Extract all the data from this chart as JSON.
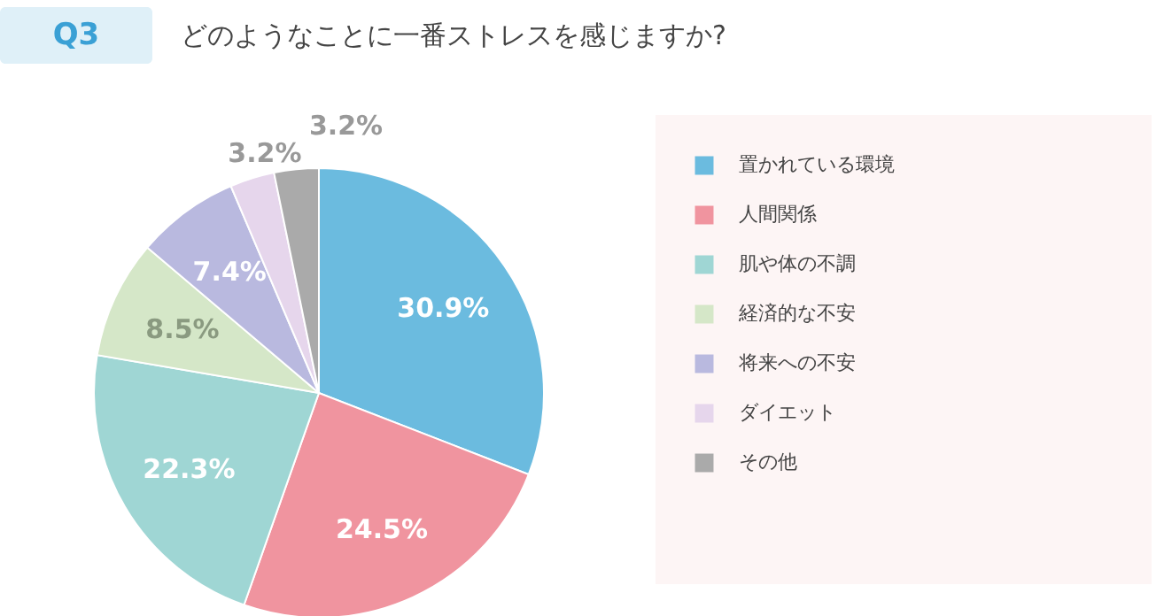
{
  "chart_data": {
    "type": "pie",
    "title": "Q3",
    "subtitle": "どのようなことに一番ストレスを感じますか?",
    "categories": [
      "置かれている環境",
      "人間関係",
      "肌や体の不調",
      "経済的な不安",
      "将来への不安",
      "ダイエット",
      "その他"
    ],
    "values": [
      30.9,
      24.5,
      22.3,
      8.5,
      7.4,
      3.2,
      3.2
    ],
    "value_labels": [
      "30.9%",
      "24.5%",
      "22.3%",
      "8.5%",
      "7.4%",
      "3.2%",
      "3.2%"
    ],
    "colors": [
      "#6bbbdf",
      "#f0949f",
      "#9fd6d4",
      "#d5e7c8",
      "#b9b9df",
      "#e6d6ec",
      "#aaaaaa"
    ],
    "legend": "right"
  }
}
